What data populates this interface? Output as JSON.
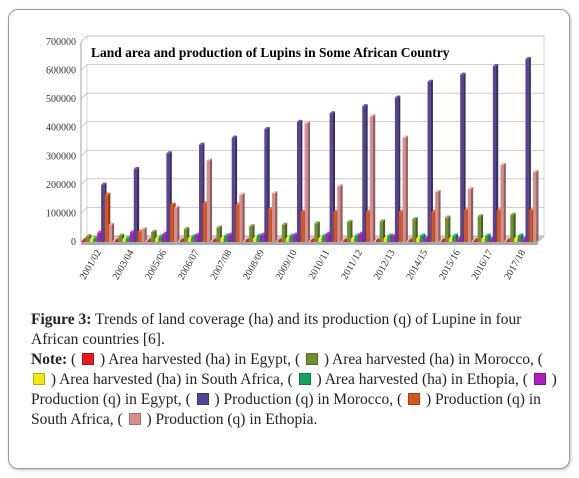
{
  "caption": {
    "figure_label": "Figure 3:",
    "figure_text": "Trends of land coverage (ha) and its production (q) of Lupine in four African countries [6].",
    "note_label": "Note:",
    "legend_items": [
      {
        "text": "Area harvested (ha) in Egypt,",
        "color": "#e5191e"
      },
      {
        "text": "Area harvested (ha) in Morocco,",
        "color": "#6f8f35"
      },
      {
        "text": "Area harvested (ha) in South Africa,",
        "color": "#f2e70f"
      },
      {
        "text": "Area harvested (ha) in Ethopia,",
        "color": "#1aa05a"
      },
      {
        "text": "Production (q) in Egypt,",
        "color": "#b01dbd"
      },
      {
        "text": "Production (q) in Morocco,",
        "color": "#584392"
      },
      {
        "text": "Production (q) in South Africa,",
        "color": "#d9541f"
      },
      {
        "text": "Production (q) in Ethopia.",
        "color": "#d98e8e"
      }
    ]
  },
  "chart_data": {
    "type": "bar",
    "title": "Land area  and production of Lupins in Some African Country",
    "xlabel": "",
    "ylabel": "",
    "ylim": [
      0,
      700000
    ],
    "yticks": [
      "0",
      "100000",
      "200000",
      "300000",
      "400000",
      "500000",
      "600000",
      "700000"
    ],
    "categories": [
      "2001/02",
      "2003/04",
      "2005/06",
      "2006/07",
      "2007/08",
      "2008/09",
      "2009/10",
      "2010/11",
      "2011/12",
      "2012/13",
      "2014/15",
      "2015/16",
      "2016/17",
      "2017/18"
    ],
    "series": [
      {
        "color": "#e5191e",
        "values": [
          5000,
          5000,
          5000,
          5000,
          5000,
          5000,
          5000,
          5000,
          5000,
          5000,
          5000,
          5000,
          5000,
          5000
        ]
      },
      {
        "color": "#6f8f35",
        "values": [
          20000,
          22000,
          35000,
          45000,
          50000,
          55000,
          60000,
          65000,
          70000,
          72000,
          80000,
          85000,
          90000,
          95000
        ]
      },
      {
        "color": "#f2e70f",
        "values": [
          10000,
          10000,
          12000,
          12000,
          12000,
          12000,
          12000,
          12000,
          12000,
          12000,
          12000,
          12000,
          12000,
          12000
        ]
      },
      {
        "color": "#1aa05a",
        "values": [
          15000,
          15000,
          20000,
          20000,
          22000,
          22000,
          22000,
          22000,
          22000,
          22000,
          22000,
          22000,
          22000,
          22000
        ]
      },
      {
        "color": "#b01dbd",
        "values": [
          32000,
          33000,
          28000,
          25000,
          25000,
          25000,
          25000,
          28000,
          28000,
          20000,
          12000,
          10000,
          10000,
          10000
        ]
      },
      {
        "color": "#584392",
        "values": [
          200000,
          255000,
          310000,
          340000,
          365000,
          395000,
          420000,
          450000,
          475000,
          505000,
          560000,
          585000,
          615000,
          640000
        ]
      },
      {
        "color": "#d9541f",
        "values": [
          165000,
          35000,
          130000,
          135000,
          130000,
          115000,
          105000,
          105000,
          105000,
          105000,
          105000,
          110000,
          110000,
          110000
        ]
      },
      {
        "color": "#d98e8e",
        "values": [
          60000,
          45000,
          120000,
          285000,
          165000,
          170000,
          415000,
          195000,
          440000,
          365000,
          175000,
          185000,
          270000,
          245000
        ]
      }
    ]
  }
}
